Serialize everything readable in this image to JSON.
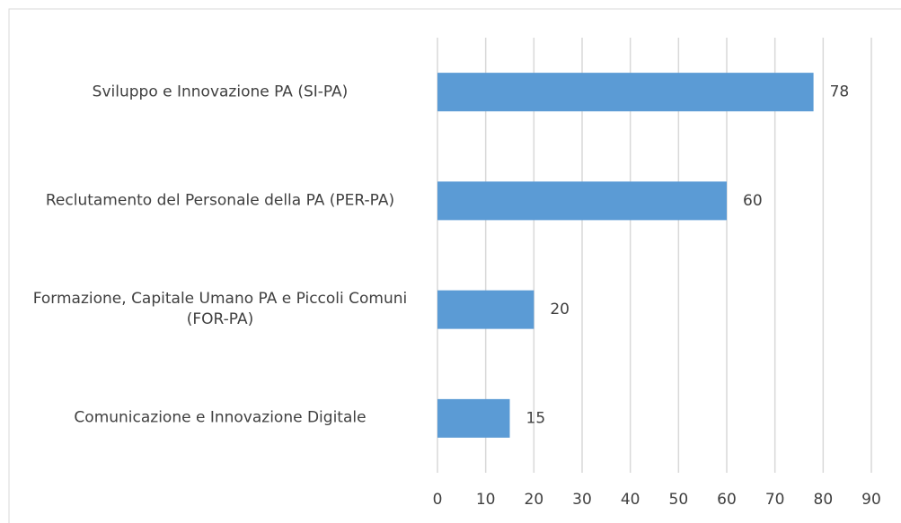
{
  "chart_data": {
    "type": "bar",
    "orientation": "horizontal",
    "categories": [
      "Sviluppo e Innovazione PA (SI-PA)",
      "Reclutamento del Personale della PA (PER-PA)",
      "Formazione, Capitale Umano PA e Piccoli Comuni (FOR-PA)",
      "Comunicazione e Innovazione Digitale"
    ],
    "values": [
      78,
      60,
      20,
      15
    ],
    "color": "#5b9bd5",
    "xlim": [
      0,
      90
    ],
    "xticks": [
      0,
      10,
      20,
      30,
      40,
      50,
      60,
      70,
      80,
      90
    ],
    "grid": true
  }
}
